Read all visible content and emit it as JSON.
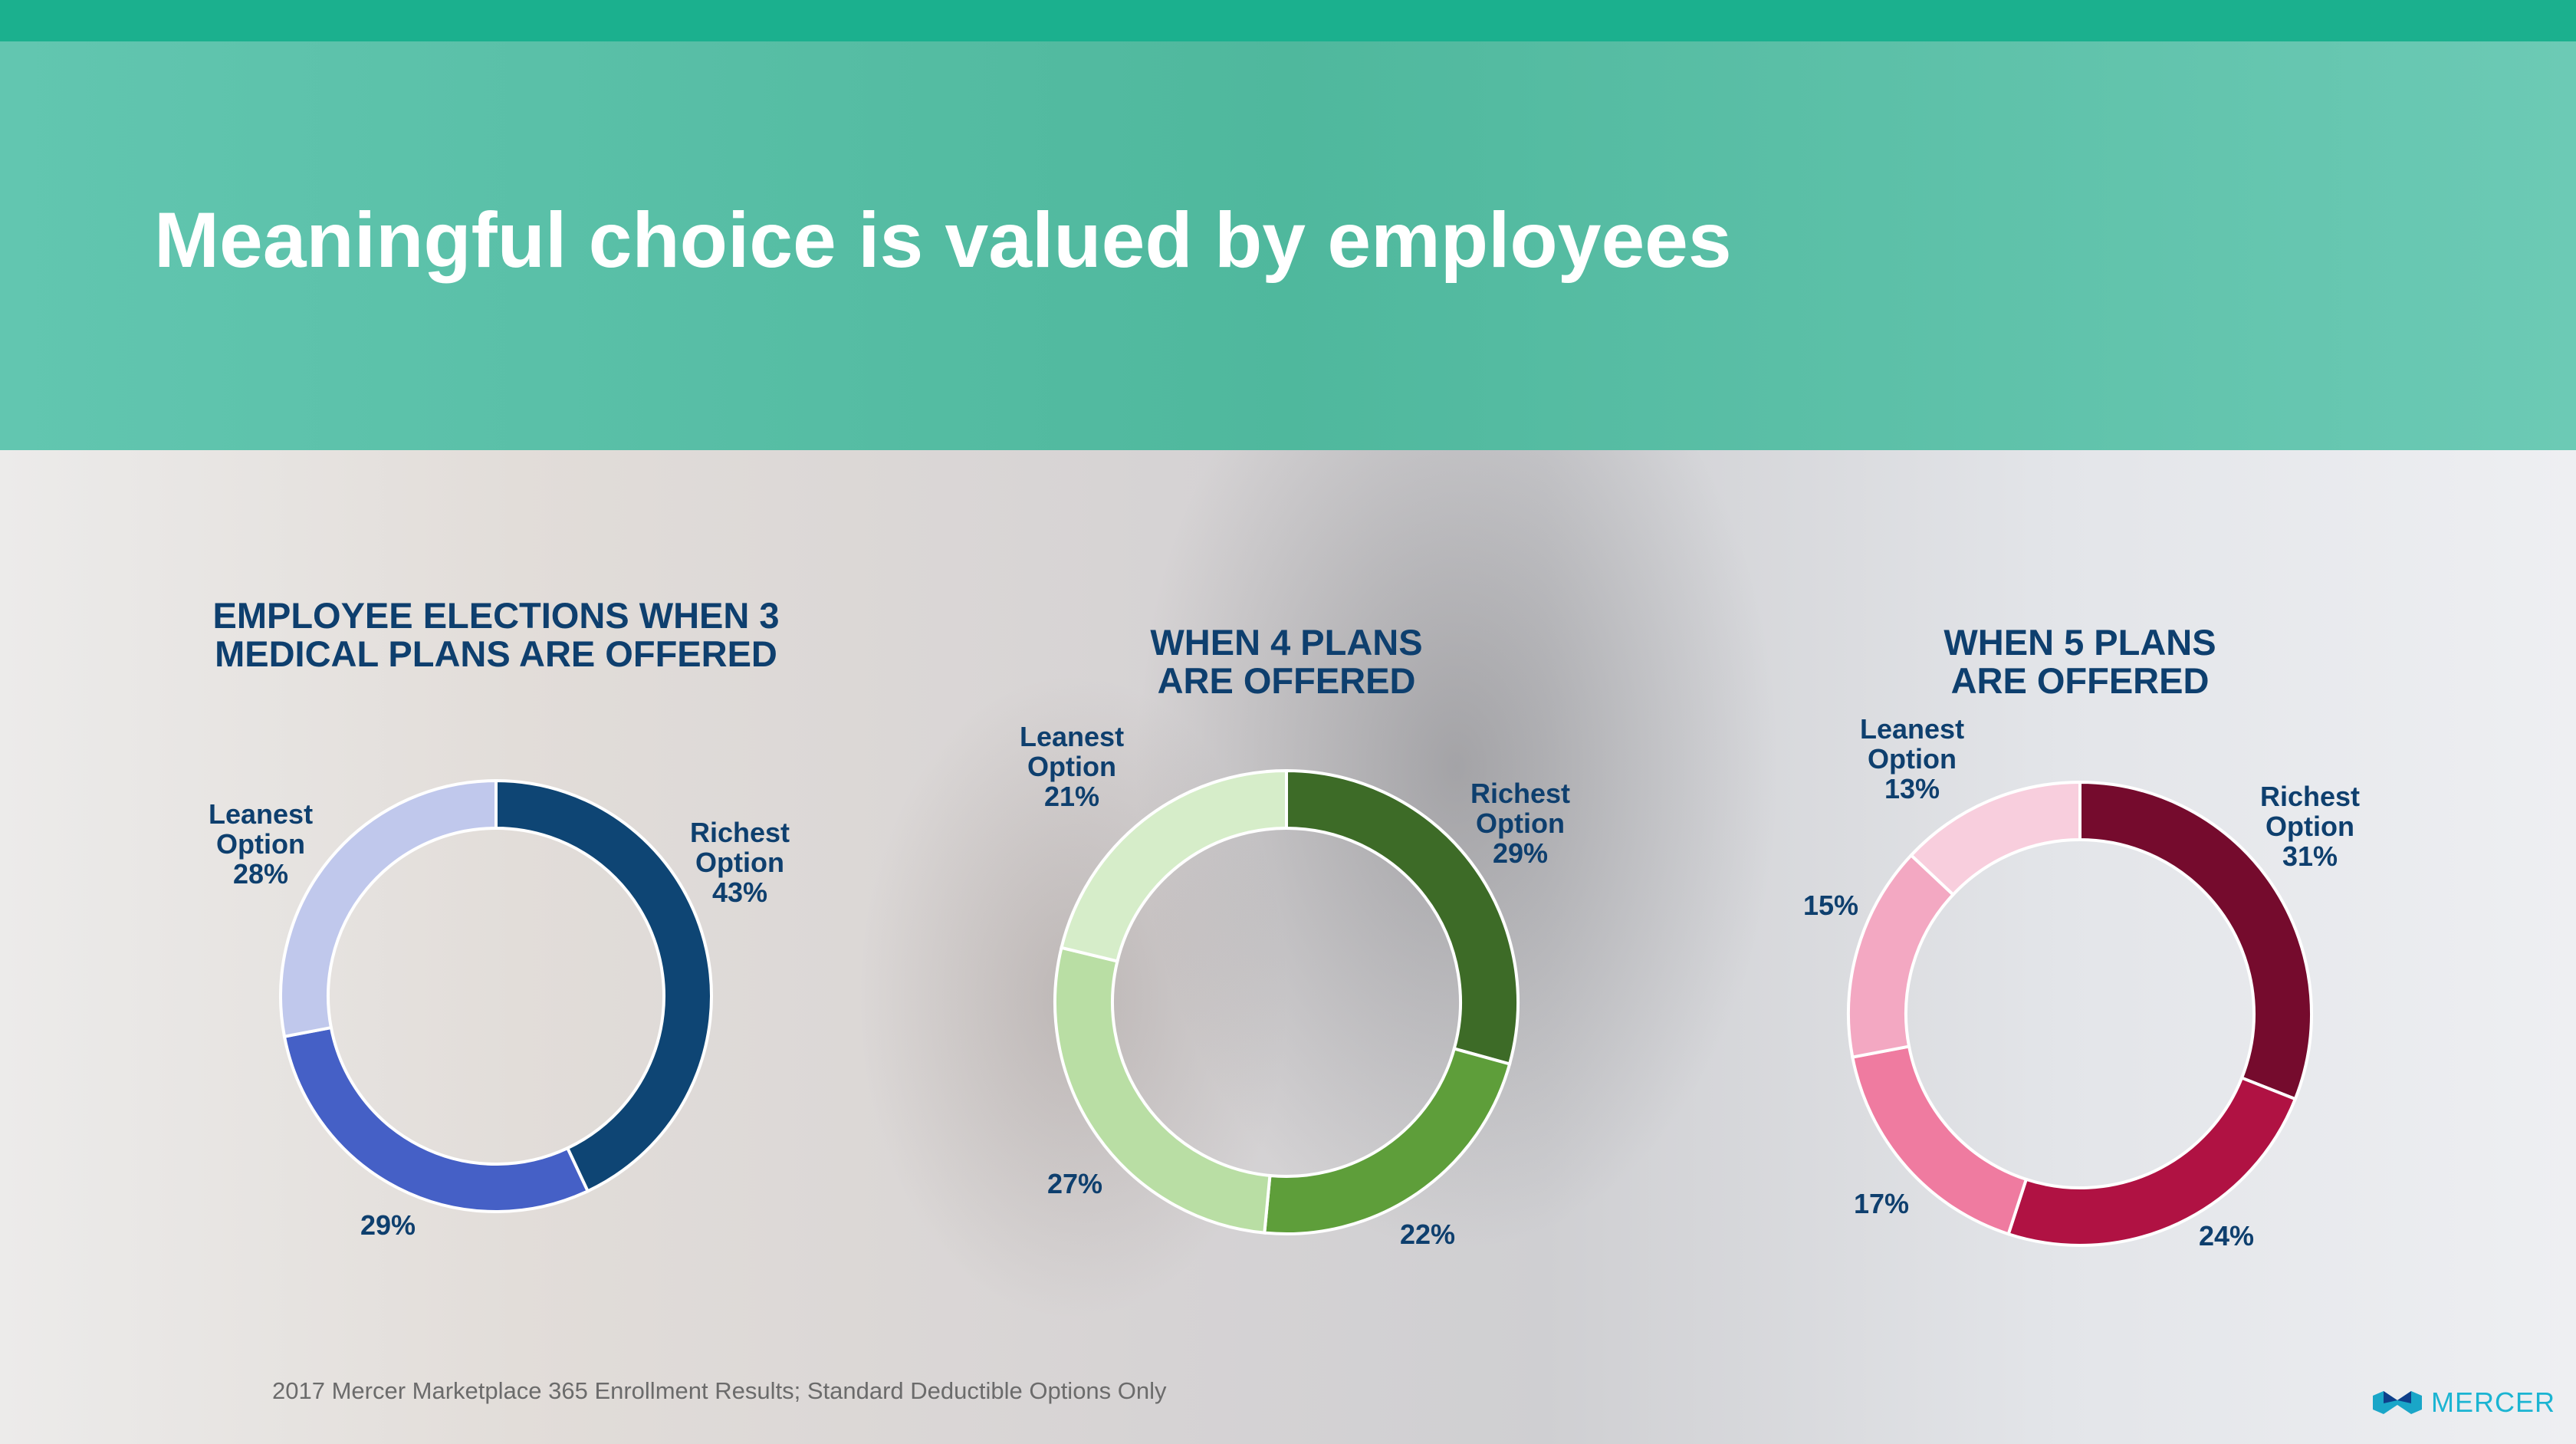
{
  "header": {
    "title": "Meaningful choice is valued by employees"
  },
  "footer": {
    "source": "2017 Mercer Marketplace 365 Enrollment Results; Standard Deductible Options Only",
    "logo": "MERCER"
  },
  "colors": {
    "accent": "#1bb08e",
    "title_text": "#0e3f6e"
  },
  "chart_data": [
    {
      "type": "pie",
      "donut": true,
      "title": "EMPLOYEE ELECTIONS WHEN 3 MEDICAL PLANS ARE OFFERED",
      "slices": [
        {
          "label": "Richest Option",
          "value": 43,
          "text": "Richest\nOption\n43%",
          "color": "#0e4574"
        },
        {
          "label": "",
          "value": 29,
          "text": "29%",
          "color": "#4560c6"
        },
        {
          "label": "Leanest Option",
          "value": 28,
          "text": "Leanest\nOption\n28%",
          "color": "#c0c8ec"
        }
      ]
    },
    {
      "type": "pie",
      "donut": true,
      "title": "WHEN 4 PLANS ARE OFFERED",
      "slices": [
        {
          "label": "Richest Option",
          "value": 29,
          "text": "Richest\nOption\n29%",
          "color": "#3d6b27"
        },
        {
          "label": "",
          "value": 22,
          "text": "22%",
          "color": "#5e9e3a"
        },
        {
          "label": "",
          "value": 27,
          "text": "27%",
          "color": "#b9dea4"
        },
        {
          "label": "Leanest Option",
          "value": 21,
          "text": "Leanest\nOption\n21%",
          "color": "#d6edc9"
        }
      ]
    },
    {
      "type": "pie",
      "donut": true,
      "title": "WHEN 5 PLANS ARE OFFERED",
      "slices": [
        {
          "label": "Richest Option",
          "value": 31,
          "text": "Richest\nOption\n31%",
          "color": "#750b2d"
        },
        {
          "label": "",
          "value": 24,
          "text": "24%",
          "color": "#b01243"
        },
        {
          "label": "",
          "value": 17,
          "text": "17%",
          "color": "#ef7ba0"
        },
        {
          "label": "",
          "value": 15,
          "text": "15%",
          "color": "#f3a8c2"
        },
        {
          "label": "Leanest Option",
          "value": 13,
          "text": "Leanest\nOption\n13%",
          "color": "#f8cedd"
        }
      ]
    }
  ]
}
